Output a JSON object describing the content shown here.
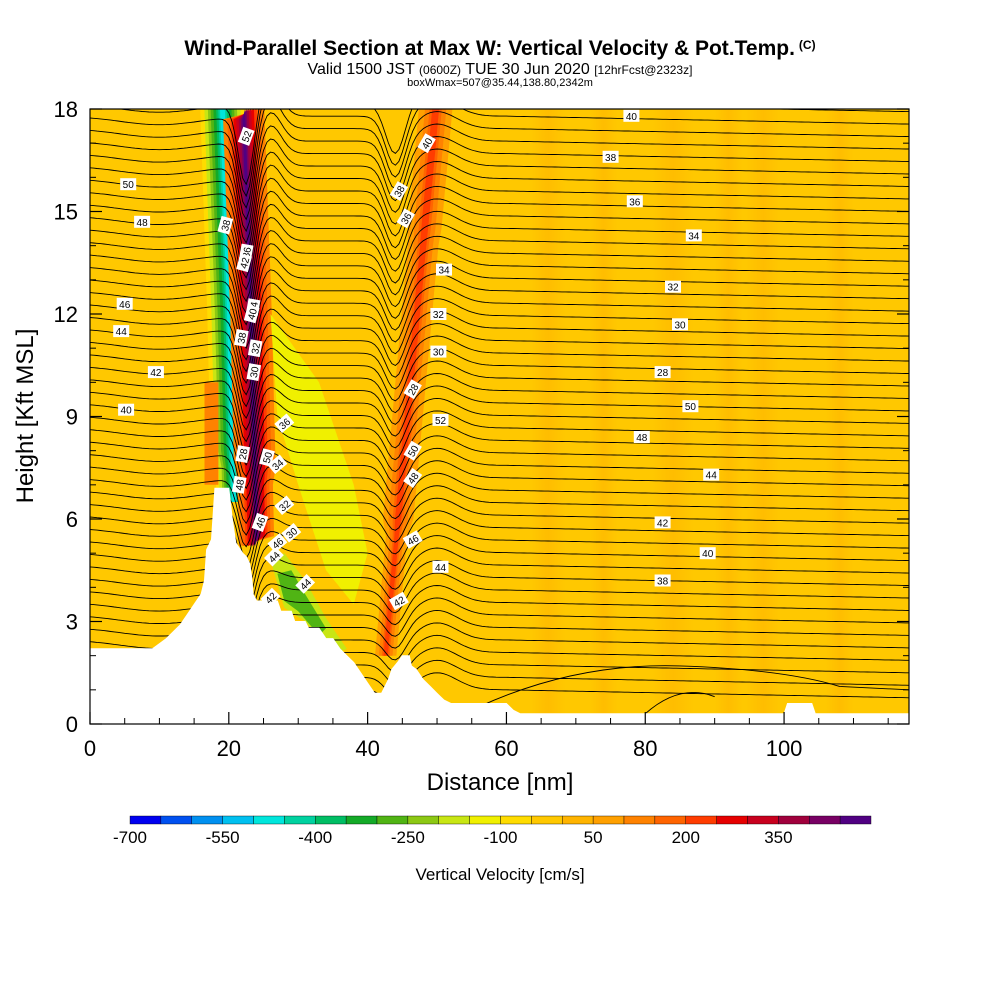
{
  "header": {
    "title": "Wind-Parallel Section at Max W: Vertical Velocity & Pot.Temp.",
    "copyright": "(C)",
    "valid_prefix": "Valid 1500 JST",
    "valid_z": "(0600Z)",
    "valid_date": "TUE 30 Jun 2020",
    "forecast": "[12hrFcst@2323z]",
    "box_info": "boxWmax=507@35.44,138.80,2342m"
  },
  "chart_data": {
    "type": "heatmap",
    "title": "Wind-Parallel Section at Max W: Vertical Velocity & Pot.Temp.",
    "xlabel": "Distance [nm]",
    "ylabel": "Height [Kft MSL]",
    "xlim": [
      0,
      118
    ],
    "ylim": [
      0,
      18
    ],
    "x_ticks": [
      "0",
      "20",
      "40",
      "60",
      "80",
      "100"
    ],
    "x_tick_values": [
      0,
      20,
      40,
      60,
      80,
      100
    ],
    "y_ticks": [
      "0",
      "3",
      "6",
      "9",
      "12",
      "15",
      "18"
    ],
    "y_tick_values": [
      0,
      3,
      6,
      9,
      12,
      15,
      18
    ],
    "shaded_field": "Vertical Velocity",
    "colorbar_label": "Vertical Velocity [cm/s]",
    "colorbar_ticks": [
      "-700",
      "-550",
      "-400",
      "-250",
      "-100",
      "50",
      "200",
      "350"
    ],
    "colorbar_colors": [
      "#0000f0",
      "#0050f0",
      "#0090f0",
      "#00c0f0",
      "#00e6dc",
      "#00d2a0",
      "#00be64",
      "#14aa28",
      "#50b414",
      "#8cc814",
      "#c8e614",
      "#f0f000",
      "#ffdc00",
      "#ffc800",
      "#ffb400",
      "#ffa000",
      "#ff8200",
      "#ff6400",
      "#ff3c00",
      "#e60000",
      "#c8001e",
      "#a0003c",
      "#780064",
      "#500082"
    ],
    "background_value_color": "#ffc800",
    "contour_field": "Potential Temperature",
    "contour_labels": [
      "52",
      "50",
      "48",
      "46",
      "44",
      "42",
      "40",
      "38",
      "36",
      "34",
      "32",
      "30",
      "28",
      "50",
      "48",
      "46",
      "44",
      "42",
      "40",
      "38",
      "36",
      "34",
      "32",
      "30",
      "28",
      "52",
      "50",
      "48",
      "46",
      "44",
      "42",
      "40",
      "38",
      "36",
      "34",
      "32",
      "30",
      "28",
      "50",
      "48",
      "44",
      "42",
      "40",
      "38",
      "46",
      "44",
      "42",
      "40",
      "38",
      "36",
      "34",
      "32",
      "30"
    ],
    "updraft_axes_nm": [
      23.5,
      47
    ],
    "downdraft_axis_nm": 20.5,
    "terrain": [
      [
        0,
        2.2
      ],
      [
        9,
        2.2
      ],
      [
        11,
        2.5
      ],
      [
        13,
        2.9
      ],
      [
        14,
        3.2
      ],
      [
        15,
        3.5
      ],
      [
        16,
        3.8
      ],
      [
        16.5,
        4.2
      ],
      [
        16.8,
        5.1
      ],
      [
        17.5,
        5.4
      ],
      [
        18,
        6.9
      ],
      [
        20,
        6.9
      ],
      [
        20.5,
        6.0
      ],
      [
        21,
        5.3
      ],
      [
        22,
        5.0
      ],
      [
        22.5,
        4.9
      ],
      [
        23,
        4.7
      ],
      [
        23.3,
        4.3
      ],
      [
        23.5,
        3.8
      ],
      [
        24,
        3.6
      ],
      [
        25,
        3.6
      ],
      [
        25.5,
        3.8
      ],
      [
        26,
        3.6
      ],
      [
        27,
        3.6
      ],
      [
        27.5,
        3.3
      ],
      [
        29,
        3.3
      ],
      [
        29.5,
        3.0
      ],
      [
        31,
        3.0
      ],
      [
        31.5,
        2.8
      ],
      [
        33,
        2.8
      ],
      [
        34,
        2.5
      ],
      [
        35,
        2.5
      ],
      [
        36,
        2.2
      ],
      [
        37,
        2.0
      ],
      [
        38,
        1.8
      ],
      [
        39,
        1.5
      ],
      [
        40,
        1.2
      ],
      [
        41,
        0.9
      ],
      [
        42,
        0.9
      ],
      [
        42.5,
        1.1
      ],
      [
        43,
        1.3
      ],
      [
        43.5,
        1.6
      ],
      [
        44.3,
        1.8
      ],
      [
        45,
        2.0
      ],
      [
        46,
        2.0
      ],
      [
        46.3,
        1.7
      ],
      [
        47,
        1.6
      ],
      [
        48,
        1.3
      ],
      [
        49,
        1.1
      ],
      [
        50,
        0.9
      ],
      [
        51,
        0.7
      ],
      [
        52,
        0.6
      ],
      [
        55,
        0.6
      ],
      [
        60,
        0.6
      ],
      [
        61,
        0.4
      ],
      [
        62,
        0.3
      ],
      [
        100,
        0.3
      ],
      [
        100.5,
        0.6
      ],
      [
        104,
        0.6
      ],
      [
        104.5,
        0.3
      ],
      [
        118,
        0.3
      ]
    ],
    "grid": false
  }
}
